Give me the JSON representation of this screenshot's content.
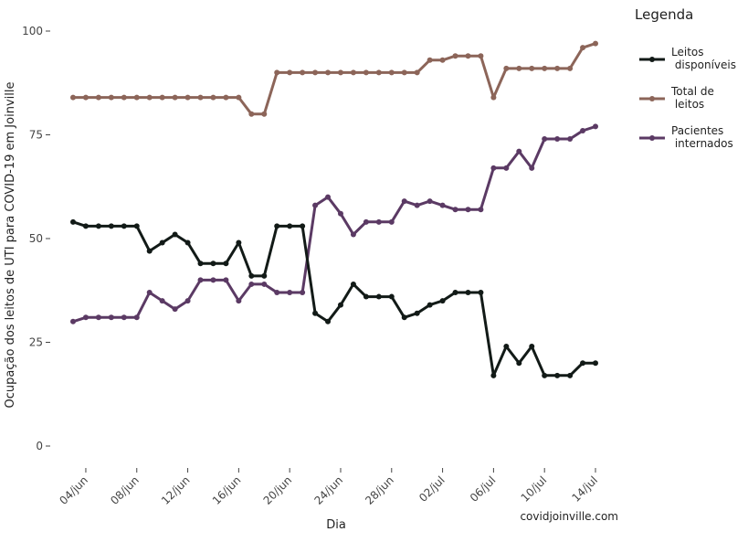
{
  "chart_data": {
    "type": "line",
    "title": "",
    "xlabel": "Dia",
    "ylabel": "Ocupação dos leitos de UTI para COVID-19 em Joinville",
    "source_label": "covidjoinville.com",
    "legend_title": "Legenda",
    "legend_position": "right",
    "grid": false,
    "ylim": [
      0,
      100
    ],
    "yticks": [
      0,
      25,
      50,
      75,
      100
    ],
    "yticklabels": [
      "0",
      "25",
      "50",
      "75",
      "100"
    ],
    "xticklabels": [
      "04/jun",
      "08/jun",
      "12/jun",
      "16/jun",
      "20/jun",
      "24/jun",
      "28/jun",
      "02/jul",
      "06/jul",
      "10/jul",
      "14/jul"
    ],
    "xtick_day_index": [
      1,
      5,
      9,
      13,
      17,
      21,
      25,
      29,
      33,
      37,
      41
    ],
    "x_start": "03/jun",
    "x_count": 42,
    "series": [
      {
        "name": "Leitos\n disponíveis",
        "color": "#121a17",
        "values": [
          54,
          53,
          53,
          53,
          53,
          53,
          47,
          49,
          51,
          49,
          44,
          44,
          44,
          49,
          41,
          41,
          53,
          53,
          53,
          32,
          30,
          34,
          39,
          36,
          36,
          36,
          31,
          32,
          34,
          35,
          37,
          37,
          37,
          17,
          24,
          20,
          24,
          17,
          17,
          17,
          20,
          20
        ]
      },
      {
        "name": "Total de\n leitos",
        "color": "#8c6559",
        "values": [
          84,
          84,
          84,
          84,
          84,
          84,
          84,
          84,
          84,
          84,
          84,
          84,
          84,
          84,
          80,
          80,
          90,
          90,
          90,
          90,
          90,
          90,
          90,
          90,
          90,
          90,
          90,
          90,
          93,
          93,
          94,
          94,
          94,
          84,
          91,
          91,
          91,
          91,
          91,
          91,
          96,
          97
        ]
      },
      {
        "name": "Pacientes\n internados",
        "color": "#5b3a64",
        "values": [
          30,
          31,
          31,
          31,
          31,
          31,
          37,
          35,
          33,
          35,
          40,
          40,
          40,
          35,
          39,
          39,
          37,
          37,
          37,
          58,
          60,
          56,
          51,
          54,
          54,
          54,
          59,
          58,
          59,
          58,
          57,
          57,
          57,
          67,
          67,
          71,
          67,
          74,
          74,
          74,
          76,
          77
        ]
      }
    ]
  }
}
